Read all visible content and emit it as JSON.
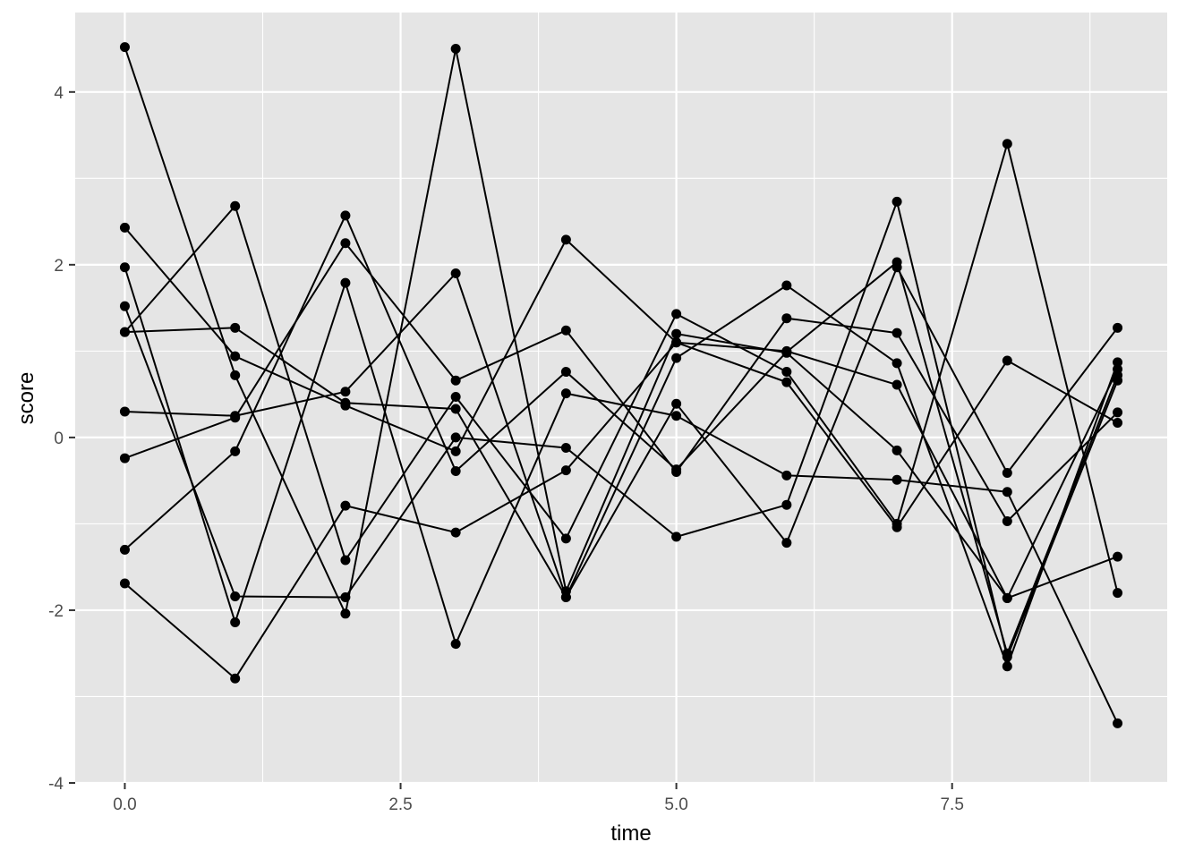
{
  "chart_data": {
    "type": "line",
    "xlabel": "time",
    "ylabel": "score",
    "xlim": [
      -0.45,
      9.45
    ],
    "ylim": [
      -4.0,
      4.92
    ],
    "x_ticks": [
      0.0,
      2.5,
      5.0,
      7.5
    ],
    "x_tick_labels": [
      "0.0",
      "2.5",
      "5.0",
      "7.5"
    ],
    "x_minor_ticks": [
      1.25,
      3.75,
      6.25,
      8.75
    ],
    "y_ticks": [
      -4,
      -2,
      0,
      2,
      4
    ],
    "y_tick_labels": [
      "-4",
      "-2",
      "0",
      "2",
      "4"
    ],
    "y_minor_ticks": [
      -3,
      -1,
      1,
      3
    ],
    "x": [
      0,
      1,
      2,
      3,
      4,
      5,
      6,
      7,
      8,
      9
    ],
    "grid": true,
    "colors": {
      "panel": "#e5e5e5",
      "grid": "#ffffff",
      "line": "#000000",
      "tick_text": "#4d4d4d"
    },
    "series": [
      {
        "values": [
          4.52,
          0.72,
          -2.04,
          4.5,
          -1.78,
          1.2,
          0.98,
          -0.15,
          -1.86,
          0.79
        ]
      },
      {
        "values": [
          2.43,
          0.94,
          0.37,
          -0.16,
          2.29,
          1.1,
          0.64,
          -1.04,
          0.89,
          0.17
        ]
      },
      {
        "values": [
          1.97,
          -2.14,
          1.79,
          -2.39,
          0.51,
          0.25,
          -0.44,
          -0.49,
          -0.63,
          -3.31
        ]
      },
      {
        "values": [
          1.52,
          -1.84,
          -1.85,
          0.0,
          -0.12,
          -1.15,
          -0.78,
          2.73,
          -2.54,
          0.66
        ]
      },
      {
        "values": [
          1.22,
          2.68,
          -1.42,
          0.47,
          -1.17,
          1.43,
          0.76,
          -1.0,
          3.4,
          -1.8
        ]
      },
      {
        "values": [
          1.22,
          1.27,
          0.4,
          0.33,
          -1.85,
          0.39,
          -1.22,
          1.97,
          -0.41,
          1.27
        ]
      },
      {
        "values": [
          0.3,
          0.25,
          0.53,
          1.9,
          -1.85,
          0.92,
          1.76,
          0.86,
          -2.65,
          0.87
        ]
      },
      {
        "values": [
          -0.24,
          0.23,
          2.25,
          0.66,
          1.24,
          -0.4,
          1.38,
          1.21,
          -0.97,
          0.29
        ]
      },
      {
        "values": [
          -1.3,
          -0.16,
          2.57,
          -0.39,
          0.76,
          -0.37,
          0.99,
          2.03,
          -2.5,
          0.72
        ]
      },
      {
        "values": [
          -1.69,
          -2.79,
          -0.79,
          -1.1,
          -0.38,
          1.1,
          1.0,
          0.61,
          -1.86,
          -1.38
        ]
      }
    ]
  }
}
